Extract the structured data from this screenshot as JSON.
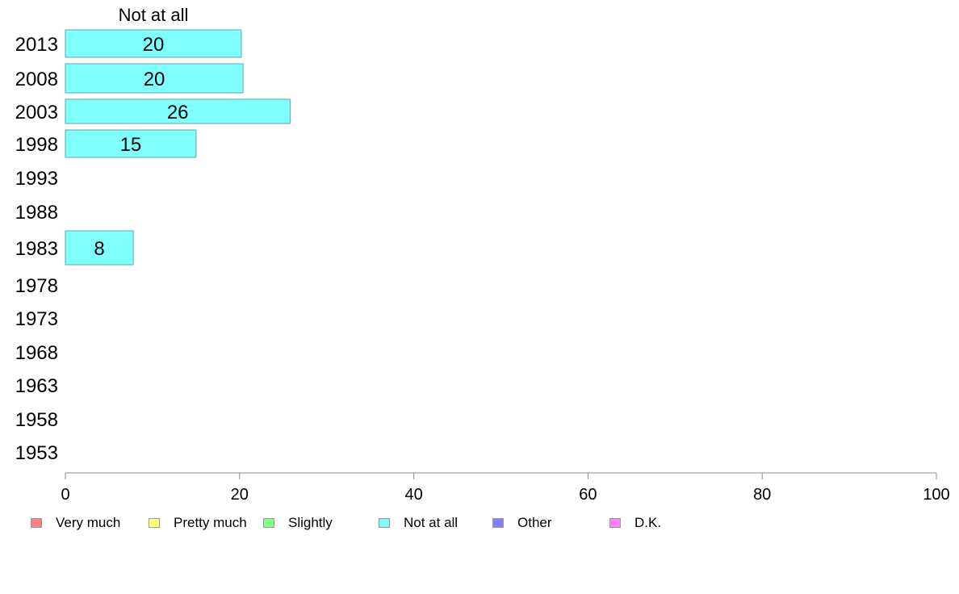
{
  "chart_data": {
    "type": "bar",
    "orientation": "horizontal",
    "title": "Not at all",
    "categories": [
      "2013",
      "2008",
      "2003",
      "1998",
      "1993",
      "1988",
      "1983",
      "1978",
      "1973",
      "1968",
      "1963",
      "1958",
      "1953"
    ],
    "series": [
      {
        "name": "Not at all",
        "color": "#80ffff",
        "values": [
          20.2,
          20.4,
          25.8,
          15.0,
          null,
          null,
          7.8,
          null,
          null,
          null,
          null,
          null,
          null
        ],
        "labels": [
          "20",
          "20",
          "26",
          "15",
          "",
          "",
          "8",
          "",
          "",
          "",
          "",
          "",
          ""
        ]
      }
    ],
    "xlim": [
      0,
      100
    ],
    "xticks": [
      0,
      20,
      40,
      60,
      80,
      100
    ],
    "xlabel": "",
    "ylabel": "",
    "grid": false,
    "legend_position": "bottom",
    "legend": [
      {
        "label": "Very much",
        "color": "#ff8080"
      },
      {
        "label": "Pretty much",
        "color": "#ffff80"
      },
      {
        "label": "Slightly",
        "color": "#80ff80"
      },
      {
        "label": "Not at all",
        "color": "#80ffff"
      },
      {
        "label": "Other",
        "color": "#8080ff"
      },
      {
        "label": "D.K.",
        "color": "#ff80ff"
      }
    ]
  }
}
